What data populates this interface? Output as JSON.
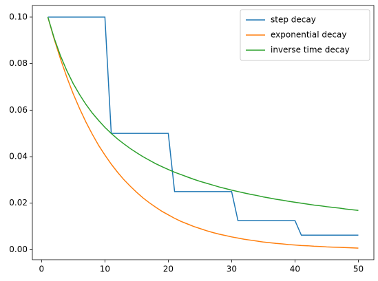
{
  "chart_data": {
    "type": "line",
    "x": [
      1,
      2,
      3,
      4,
      5,
      6,
      7,
      8,
      9,
      10,
      11,
      12,
      13,
      14,
      15,
      16,
      17,
      18,
      19,
      20,
      21,
      22,
      23,
      24,
      25,
      26,
      27,
      28,
      29,
      30,
      31,
      32,
      33,
      34,
      35,
      36,
      37,
      38,
      39,
      40,
      41,
      42,
      43,
      44,
      45,
      46,
      47,
      48,
      49,
      50
    ],
    "series": [
      {
        "name": "step decay",
        "color": "#1f77b4",
        "values": [
          0.1,
          0.1,
          0.1,
          0.1,
          0.1,
          0.1,
          0.1,
          0.1,
          0.1,
          0.1,
          0.05,
          0.05,
          0.05,
          0.05,
          0.05,
          0.05,
          0.05,
          0.05,
          0.05,
          0.05,
          0.025,
          0.025,
          0.025,
          0.025,
          0.025,
          0.025,
          0.025,
          0.025,
          0.025,
          0.025,
          0.0125,
          0.0125,
          0.0125,
          0.0125,
          0.0125,
          0.0125,
          0.0125,
          0.0125,
          0.0125,
          0.0125,
          0.00625,
          0.00625,
          0.00625,
          0.00625,
          0.00625,
          0.00625,
          0.00625,
          0.00625,
          0.00625,
          0.00625
        ]
      },
      {
        "name": "exponential decay",
        "color": "#ff7f0e",
        "values": [
          0.1,
          0.0905,
          0.0819,
          0.0741,
          0.067,
          0.0607,
          0.0549,
          0.0497,
          0.0449,
          0.0407,
          0.0368,
          0.0333,
          0.0301,
          0.0273,
          0.0247,
          0.0223,
          0.0202,
          0.0183,
          0.0165,
          0.015,
          0.0135,
          0.0122,
          0.0111,
          0.01,
          0.0091,
          0.0082,
          0.0074,
          0.0067,
          0.0061,
          0.0055,
          0.005,
          0.0045,
          0.0041,
          0.0037,
          0.0033,
          0.003,
          0.0027,
          0.0025,
          0.0022,
          0.002,
          0.0018,
          0.0017,
          0.0015,
          0.0014,
          0.0012,
          0.0011,
          0.001,
          0.0009,
          0.0008,
          0.0007
        ]
      },
      {
        "name": "inverse time decay",
        "color": "#2ca02c",
        "values": [
          0.1,
          0.0909,
          0.0833,
          0.0769,
          0.0714,
          0.0667,
          0.0625,
          0.0588,
          0.0556,
          0.0526,
          0.05,
          0.0476,
          0.0455,
          0.0435,
          0.0417,
          0.04,
          0.0385,
          0.037,
          0.0357,
          0.0345,
          0.0333,
          0.0323,
          0.0313,
          0.0303,
          0.0294,
          0.0286,
          0.0278,
          0.027,
          0.0263,
          0.0256,
          0.025,
          0.0244,
          0.0238,
          0.0233,
          0.0227,
          0.0222,
          0.0217,
          0.0213,
          0.0208,
          0.0204,
          0.02,
          0.0196,
          0.0192,
          0.0189,
          0.0185,
          0.0182,
          0.0179,
          0.0175,
          0.0172,
          0.0169
        ]
      }
    ],
    "xlim": [
      -1.45,
      52.45
    ],
    "ylim": [
      -0.0043,
      0.105
    ],
    "xticks": [
      0,
      10,
      20,
      30,
      40,
      50
    ],
    "yticks": [
      {
        "value": 0,
        "label": "0.00"
      },
      {
        "value": 0.02,
        "label": "0.02"
      },
      {
        "value": 0.04,
        "label": "0.04"
      },
      {
        "value": 0.06,
        "label": "0.06"
      },
      {
        "value": 0.08,
        "label": "0.08"
      },
      {
        "value": 0.1,
        "label": "0.10"
      }
    ],
    "legend": "upper right"
  }
}
